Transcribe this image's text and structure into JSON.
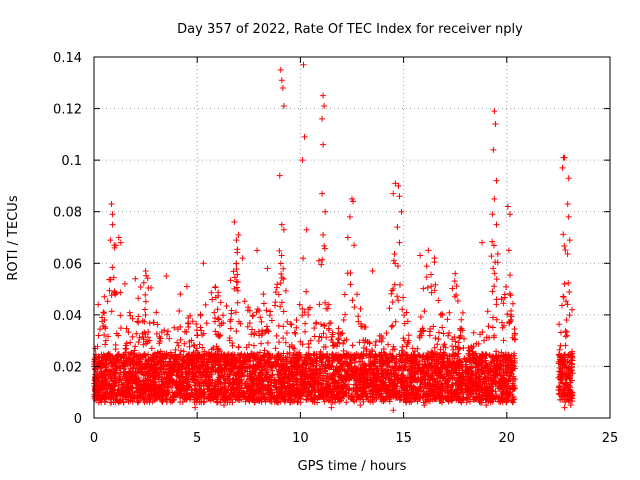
{
  "chart_data": {
    "type": "scatter",
    "title": "Day 357 of 2022, Rate Of TEC Index for receiver nply",
    "xlabel": "GPS time / hours",
    "ylabel": "ROTI / TECUs",
    "xlim": [
      0,
      25
    ],
    "ylim": [
      0,
      0.14
    ],
    "xticks": [
      0,
      5,
      10,
      15,
      20,
      25
    ],
    "xtick_labels": [
      "0",
      "5",
      "10",
      "15",
      "20",
      "25"
    ],
    "yticks": [
      0,
      0.02,
      0.04,
      0.06,
      0.08,
      0.1,
      0.12,
      0.14
    ],
    "ytick_labels": [
      "0",
      "0.02",
      "0.04",
      "0.06",
      "0.08",
      "0.1",
      "0.12",
      "0.14"
    ],
    "grid": true,
    "marker": "+",
    "color": "#ff0000",
    "data_coverage_hours": [
      [
        0,
        20.4
      ],
      [
        22.5,
        23.2
      ]
    ],
    "series": [
      {
        "points": [
          [
            9.05,
            0.135
          ],
          [
            9.1,
            0.131
          ],
          [
            9.15,
            0.128
          ],
          [
            9.2,
            0.121
          ],
          [
            9.0,
            0.094
          ],
          [
            9.1,
            0.075
          ],
          [
            9.2,
            0.073
          ],
          [
            10.15,
            0.137
          ],
          [
            10.2,
            0.109
          ],
          [
            10.1,
            0.1
          ],
          [
            10.3,
            0.073
          ],
          [
            11.1,
            0.125
          ],
          [
            11.15,
            0.121
          ],
          [
            11.05,
            0.116
          ],
          [
            11.1,
            0.106
          ],
          [
            11.05,
            0.087
          ],
          [
            11.2,
            0.08
          ],
          [
            11.1,
            0.071
          ],
          [
            12.4,
            0.078
          ],
          [
            12.5,
            0.085
          ],
          [
            12.55,
            0.084
          ],
          [
            12.3,
            0.07
          ],
          [
            12.6,
            0.067
          ],
          [
            14.6,
            0.091
          ],
          [
            14.75,
            0.09
          ],
          [
            14.5,
            0.087
          ],
          [
            14.8,
            0.086
          ],
          [
            14.9,
            0.08
          ],
          [
            14.7,
            0.074
          ],
          [
            14.8,
            0.068
          ],
          [
            19.4,
            0.119
          ],
          [
            19.45,
            0.114
          ],
          [
            19.35,
            0.104
          ],
          [
            19.5,
            0.092
          ],
          [
            19.4,
            0.085
          ],
          [
            19.3,
            0.079
          ],
          [
            19.5,
            0.075
          ],
          [
            20.05,
            0.082
          ],
          [
            20.15,
            0.079
          ],
          [
            20.1,
            0.065
          ],
          [
            22.75,
            0.101
          ],
          [
            22.8,
            0.101
          ],
          [
            22.7,
            0.097
          ],
          [
            23.0,
            0.093
          ],
          [
            22.95,
            0.083
          ],
          [
            23.0,
            0.078
          ],
          [
            23.05,
            0.069
          ],
          [
            0.85,
            0.083
          ],
          [
            0.9,
            0.079
          ],
          [
            0.9,
            0.075
          ],
          [
            1.2,
            0.07
          ],
          [
            1.3,
            0.068
          ],
          [
            0.8,
            0.069
          ],
          [
            6.8,
            0.076
          ],
          [
            7.0,
            0.071
          ],
          [
            6.9,
            0.069
          ],
          [
            7.2,
            0.062
          ],
          [
            7.9,
            0.065
          ],
          [
            16.2,
            0.065
          ],
          [
            16.5,
            0.062
          ],
          [
            18.8,
            0.068
          ],
          [
            5.3,
            0.06
          ],
          [
            3.5,
            0.055
          ],
          [
            2.5,
            0.057
          ],
          [
            8.4,
            0.058
          ],
          [
            10.9,
            0.061
          ],
          [
            13.5,
            0.057
          ],
          [
            17.5,
            0.056
          ],
          [
            4.5,
            0.051
          ],
          [
            2.0,
            0.054
          ],
          [
            15.8,
            0.063
          ],
          [
            0.2,
            0.044
          ],
          [
            0.5,
            0.047
          ],
          [
            1.0,
            0.066
          ],
          [
            1.5,
            0.052
          ],
          [
            0.1,
            0.01
          ],
          [
            0.3,
            0.012
          ],
          [
            2.2,
            0.009
          ],
          [
            3.8,
            0.008
          ],
          [
            4.9,
            0.004
          ],
          [
            6.3,
            0.005
          ],
          [
            7.5,
            0.007
          ],
          [
            9.5,
            0.006
          ],
          [
            11.5,
            0.004
          ],
          [
            12.9,
            0.005
          ],
          [
            14.5,
            0.003
          ],
          [
            16.0,
            0.005
          ],
          [
            17.8,
            0.006
          ],
          [
            19.0,
            0.005
          ],
          [
            20.3,
            0.006
          ],
          [
            22.8,
            0.004
          ],
          [
            23.1,
            0.005
          ],
          [
            1.8,
            0.025
          ],
          [
            2.7,
            0.03
          ],
          [
            3.2,
            0.022
          ],
          [
            4.1,
            0.028
          ],
          [
            5.5,
            0.018
          ],
          [
            6.0,
            0.026
          ],
          [
            8.0,
            0.032
          ],
          [
            8.8,
            0.027
          ],
          [
            9.8,
            0.035
          ],
          [
            10.5,
            0.03
          ],
          [
            11.8,
            0.029
          ],
          [
            12.1,
            0.038
          ],
          [
            13.2,
            0.026
          ],
          [
            14.0,
            0.031
          ],
          [
            15.2,
            0.024
          ],
          [
            16.8,
            0.04
          ],
          [
            17.2,
            0.033
          ],
          [
            18.3,
            0.02
          ],
          [
            18.9,
            0.03
          ],
          [
            19.8,
            0.035
          ],
          [
            20.2,
            0.04
          ],
          [
            22.6,
            0.028
          ],
          [
            22.9,
            0.038
          ]
        ]
      }
    ]
  }
}
